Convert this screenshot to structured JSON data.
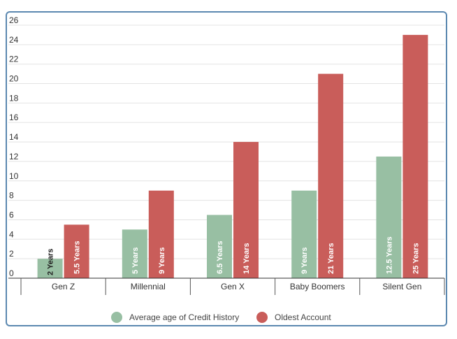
{
  "chart_data": {
    "type": "bar",
    "categories": [
      "Gen Z",
      "Millennial",
      "Gen X",
      "Baby Boomers",
      "Silent Gen"
    ],
    "series": [
      {
        "name": "Average age of Credit History",
        "values": [
          2,
          5,
          6.5,
          9,
          12.5
        ],
        "labels": [
          "2 Years",
          "5 Years",
          "6.5 Years",
          "9 Years",
          "12.5 Years"
        ],
        "color": "#98bfa3"
      },
      {
        "name": "Oldest Account",
        "values": [
          5.5,
          9,
          14,
          21,
          25
        ],
        "labels": [
          "5.5 Years",
          "9 Years",
          "14 Years",
          "21 Years",
          "25 Years"
        ],
        "color": "#c95d5a"
      }
    ],
    "ylim": [
      0,
      26
    ],
    "yticks": [
      0,
      2,
      4,
      6,
      8,
      10,
      12,
      14,
      16,
      18,
      20,
      22,
      24,
      26
    ],
    "grid": true,
    "legend_position": "bottom-center"
  }
}
